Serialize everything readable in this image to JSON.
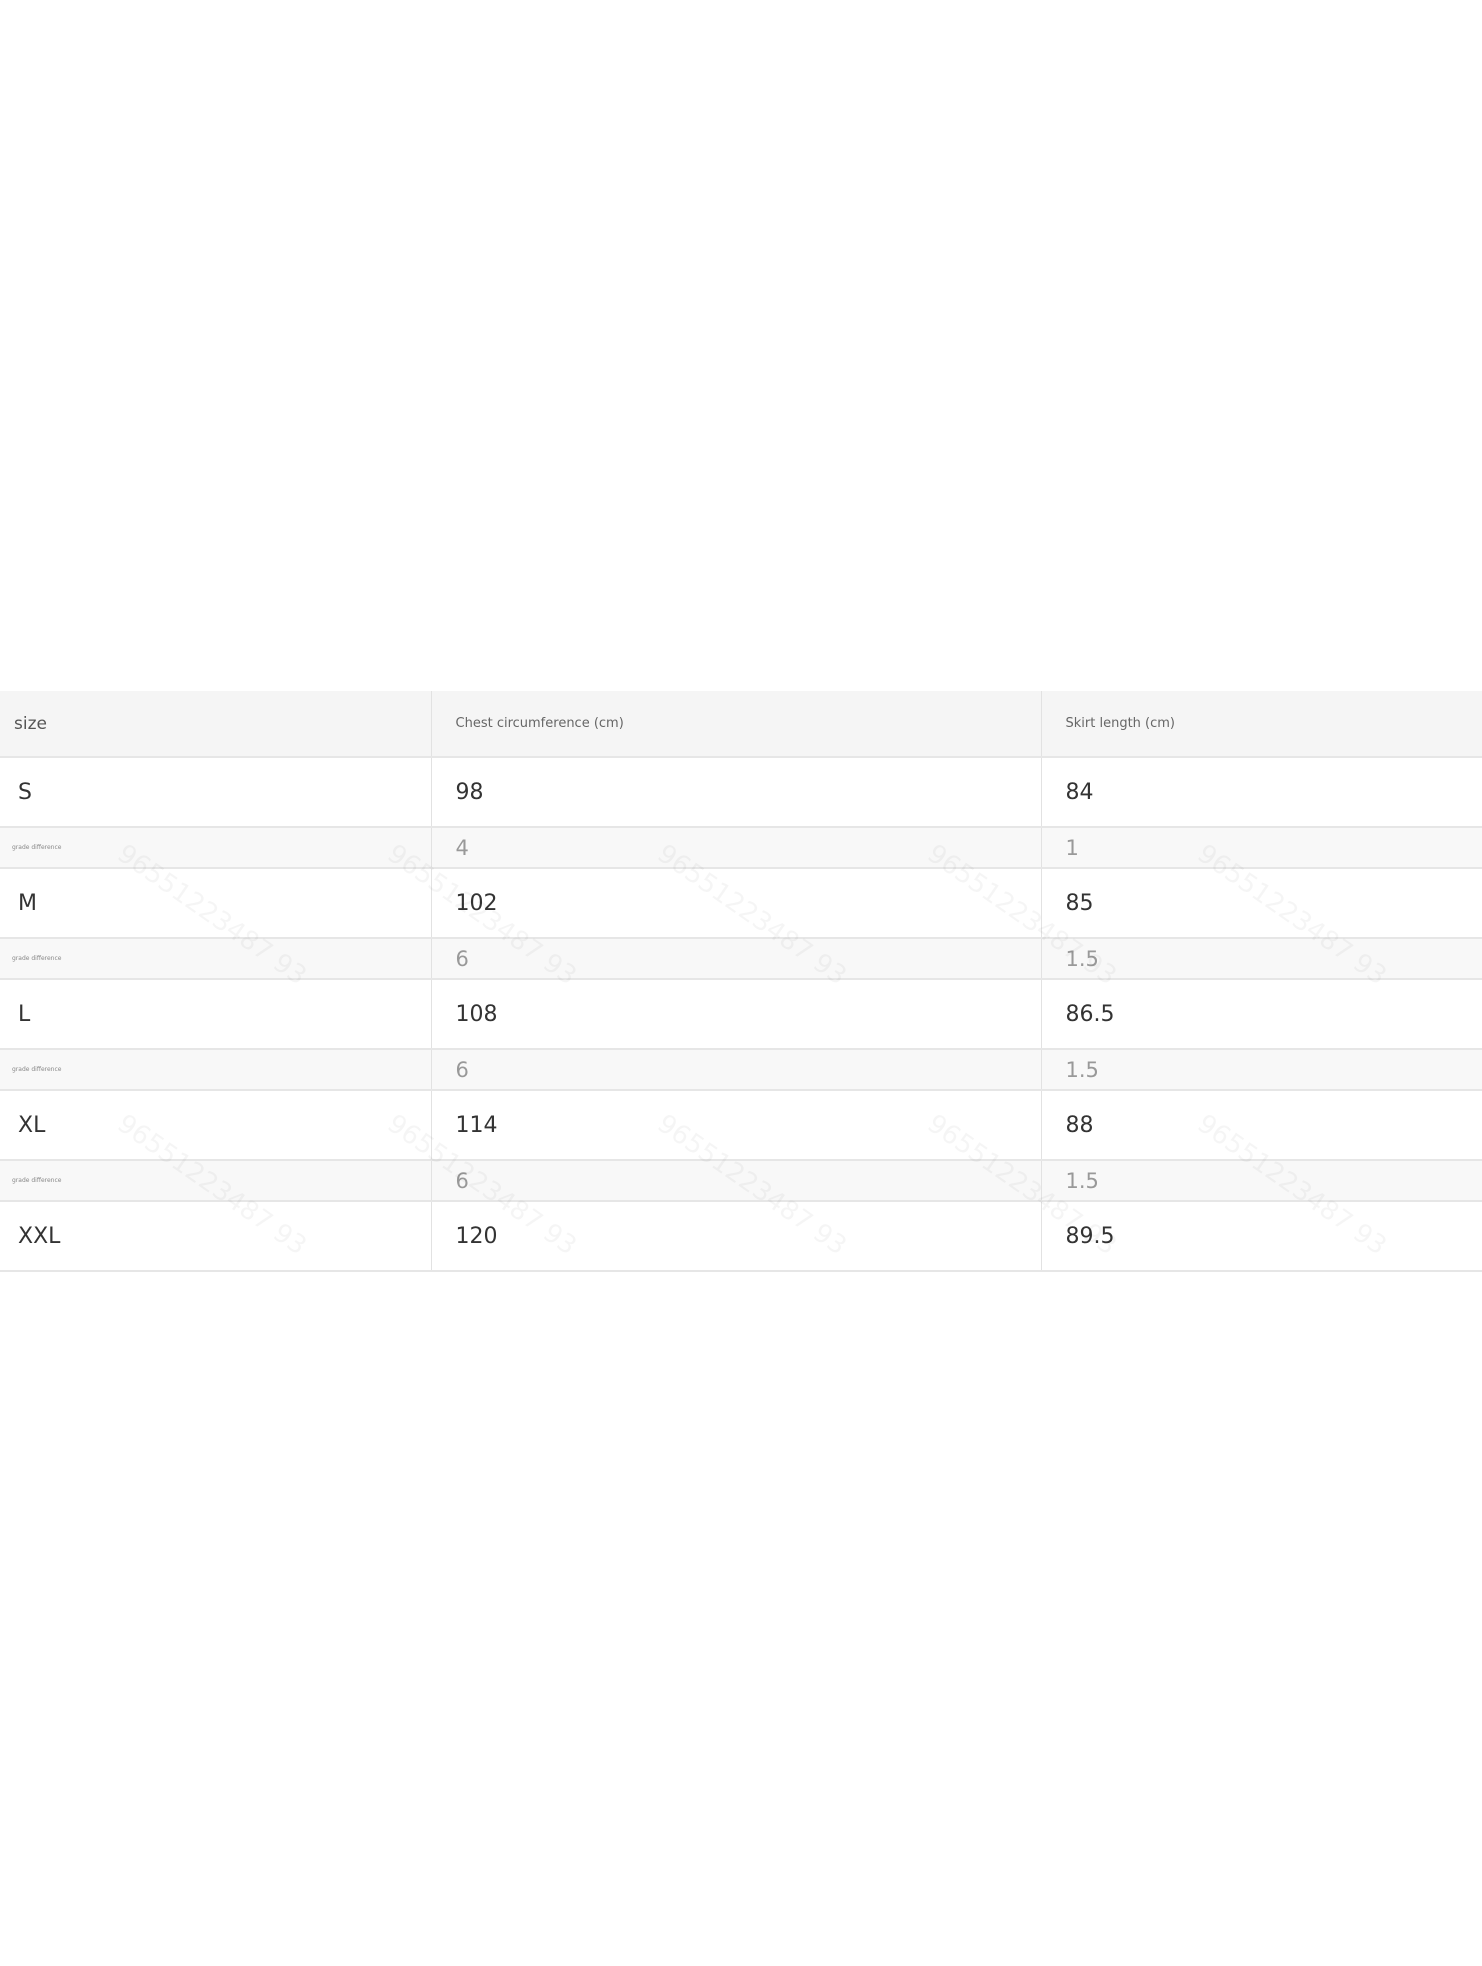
{
  "table": {
    "headers": [
      "size",
      "Chest circumference (cm)",
      "Skirt length (cm)"
    ],
    "rows": [
      {
        "size": "S",
        "chest": "98",
        "skirt": "84"
      },
      {
        "size": "M",
        "chest": "102",
        "skirt": "85"
      },
      {
        "size": "L",
        "chest": "108",
        "skirt": "86.5"
      },
      {
        "size": "XL",
        "chest": "114",
        "skirt": "88"
      },
      {
        "size": "XXL",
        "chest": "120",
        "skirt": "89.5"
      }
    ],
    "differences": [
      {
        "label": "grade difference",
        "chest": "4",
        "skirt": "1"
      },
      {
        "label": "grade difference",
        "chest": "6",
        "skirt": "1.5"
      },
      {
        "label": "grade difference",
        "chest": "6",
        "skirt": "1.5"
      },
      {
        "label": "grade difference",
        "chest": "6",
        "skirt": "1.5"
      }
    ]
  },
  "watermark": "96551223487 93"
}
